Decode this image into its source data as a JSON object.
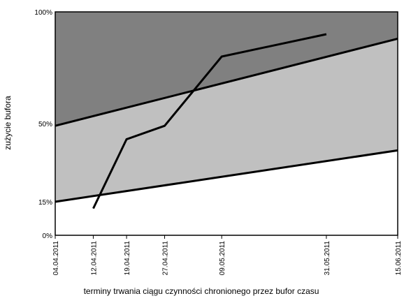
{
  "chart_data": {
    "type": "area",
    "title": "",
    "xlabel": "terminy trwania ciągu czynności chronionego przez bufor czasu",
    "ylabel": "zużycie bufora",
    "x_ticks": [
      "04.04.2011",
      "12.04.2011",
      "19.04.2011",
      "27.04.2011",
      "09.05.2011",
      "31.05.2011",
      "15.06.2011"
    ],
    "y_ticks": [
      "0%",
      "15%",
      "50%",
      "100%"
    ],
    "xlim": [
      "2011-04-04",
      "2011-06-15"
    ],
    "ylim": [
      0,
      100
    ],
    "grid": false,
    "zones": {
      "lower_boundary": {
        "name": "",
        "points": [
          [
            "2011-04-04",
            15
          ],
          [
            "2011-06-15",
            38
          ]
        ]
      },
      "upper_boundary": {
        "name": "",
        "points": [
          [
            "2011-04-04",
            49
          ],
          [
            "2011-06-15",
            88
          ]
        ]
      }
    },
    "series": [
      {
        "name": "",
        "points": [
          [
            "2011-04-12",
            12
          ],
          [
            "2011-04-19",
            43
          ],
          [
            "2011-04-27",
            49
          ],
          [
            "2011-05-09",
            80
          ],
          [
            "2011-05-31",
            90
          ]
        ]
      }
    ],
    "colors": {
      "green_zone": "#ffffff",
      "yellow_zone": "#c0c0c0",
      "red_zone": "#808080",
      "line": "#000000",
      "frame": "#000000"
    }
  }
}
